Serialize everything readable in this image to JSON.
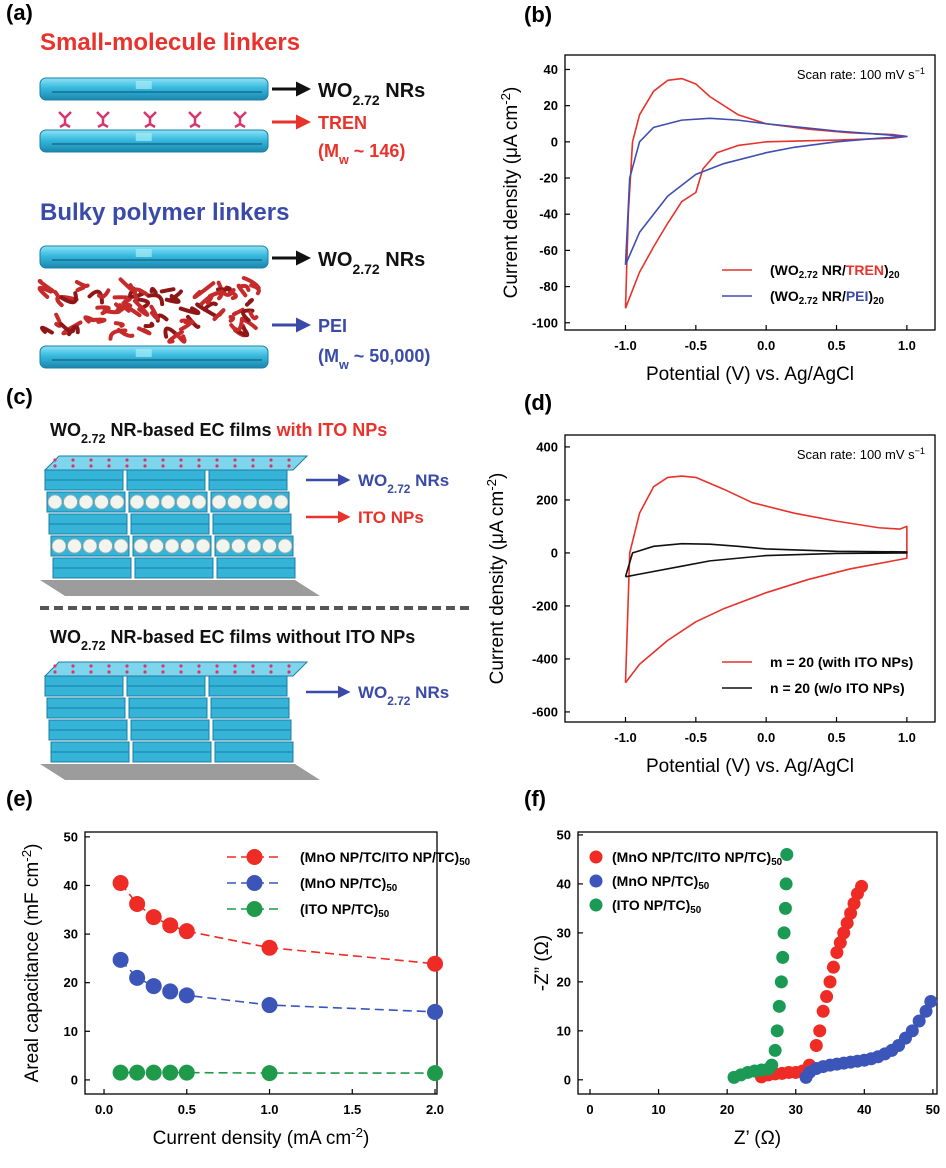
{
  "diagrams": [
    {
      "label": "(a)",
      "sections": [
        {
          "heading": "Small-molecule linkers",
          "callouts": [
            [
              "WO",
              {
                "text": "2.72",
                "style": "sub"
              },
              " NRs"
            ],
            "TREN",
            [
              "(M",
              {
                "text": "w",
                "style": "sub"
              },
              " ~ 146)"
            ]
          ]
        },
        {
          "heading": "Bulky polymer linkers",
          "callouts": [
            [
              "WO",
              {
                "text": "2.72",
                "style": "sub"
              },
              " NRs"
            ],
            "PEI",
            [
              "(M",
              {
                "text": "w",
                "style": "sub"
              },
              " ~ 50,000)"
            ]
          ]
        }
      ]
    },
    {
      "label": "(c)",
      "sections": [
        {
          "heading": [
            "WO",
            {
              "text": "2.72",
              "style": "sub"
            },
            " NR-based EC films ",
            {
              "text": "with ITO NPs",
              "color": "#e8322b"
            }
          ],
          "callouts": [
            [
              "WO",
              {
                "text": "2.72",
                "style": "sub"
              },
              " NRs"
            ],
            "ITO NPs"
          ]
        },
        {
          "heading": [
            "WO",
            {
              "text": "2.72",
              "style": "sub"
            },
            " NR-based EC films without ITO NPs"
          ],
          "callouts": [
            [
              "WO",
              {
                "text": "2.72",
                "style": "sub"
              },
              " NRs"
            ]
          ]
        }
      ]
    }
  ],
  "chart_data": [
    {
      "type": "line",
      "label": "(b)",
      "xlabel": "Potential (V) vs. Ag/AgCl",
      "ylabel": [
        "Current density (μA cm",
        {
          "text": "-2",
          "style": "sup"
        },
        ")"
      ],
      "annotation": [
        "Scan rate: 100 mV s",
        {
          "text": "−1",
          "style": "sup"
        }
      ],
      "xlim": [
        -1.43,
        1.2
      ],
      "ylim": [
        -104,
        48
      ],
      "xticks": [
        {
          "value": -1,
          "label": "-1.0"
        },
        {
          "value": -0.5,
          "label": "-0.5"
        },
        {
          "value": 0,
          "label": "0.0"
        },
        {
          "value": 0.5,
          "label": "0.5"
        },
        {
          "value": 1,
          "label": "1.0"
        }
      ],
      "yticks": [
        -100,
        -80,
        -60,
        -40,
        -20,
        0,
        20,
        40
      ],
      "legend": "lower right",
      "series": [
        {
          "name": [
            "(WO",
            {
              "text": "2.72",
              "style": "sub"
            },
            " NR/",
            {
              "text": "TREN",
              "color": "#e8322b"
            },
            ")",
            {
              "text": "20",
              "style": "sub"
            }
          ],
          "color": "#e8322b",
          "x": [
            -1,
            -0.98,
            -0.95,
            -0.9,
            -0.8,
            -0.7,
            -0.6,
            -0.5,
            -0.4,
            -0.2,
            0,
            0.3,
            0.6,
            0.9,
            1,
            0.9,
            0.5,
            0,
            -0.2,
            -0.35,
            -0.45,
            -0.5,
            -0.6,
            -0.7,
            -0.8,
            -0.9,
            -1
          ],
          "values": [
            -92,
            -40,
            0,
            15,
            28,
            34,
            35,
            32,
            25,
            15,
            10,
            7,
            5,
            4,
            3,
            2,
            1,
            0,
            -2,
            -6,
            -15,
            -28,
            -33,
            -45,
            -58,
            -72,
            -92
          ]
        },
        {
          "name": [
            "(WO",
            {
              "text": "2.72",
              "style": "sub"
            },
            " NR/",
            {
              "text": "PEI",
              "color": "#3a4aa8"
            },
            ")",
            {
              "text": "20",
              "style": "sub"
            }
          ],
          "color": "#3f4fb0",
          "x": [
            -1,
            -0.97,
            -0.9,
            -0.8,
            -0.6,
            -0.4,
            -0.2,
            0,
            0.5,
            1,
            0.8,
            0.5,
            0.2,
            0,
            -0.3,
            -0.5,
            -0.7,
            -0.9,
            -1
          ],
          "values": [
            -68,
            -20,
            0,
            8,
            12,
            13,
            12,
            10,
            6,
            3,
            2,
            0,
            -3,
            -6,
            -12,
            -18,
            -30,
            -50,
            -68
          ]
        }
      ]
    },
    {
      "type": "line",
      "label": "(d)",
      "xlabel": "Potential (V) vs. Ag/AgCl",
      "ylabel": [
        "Current density (μA cm",
        {
          "text": "-2",
          "style": "sup"
        },
        ")"
      ],
      "annotation": [
        "Scan rate: 100 mV s",
        {
          "text": "−1",
          "style": "sup"
        }
      ],
      "xlim": [
        -1.43,
        1.2
      ],
      "ylim": [
        -638,
        445
      ],
      "xticks": [
        {
          "value": -1,
          "label": "-1.0"
        },
        {
          "value": -0.5,
          "label": "-0.5"
        },
        {
          "value": 0,
          "label": "0.0"
        },
        {
          "value": 0.5,
          "label": "0.5"
        },
        {
          "value": 1,
          "label": "1.0"
        }
      ],
      "yticks": [
        -600,
        -400,
        -200,
        0,
        200,
        400
      ],
      "legend": "lower right",
      "series": [
        {
          "name": "m = 20 (with ITO NPs)",
          "color": "#e8322b",
          "x": [
            -1,
            -0.97,
            -0.9,
            -0.8,
            -0.7,
            -0.6,
            -0.5,
            -0.3,
            -0.1,
            0.2,
            0.5,
            0.8,
            0.95,
            1,
            1,
            0.9,
            0.6,
            0.3,
            0,
            -0.3,
            -0.5,
            -0.7,
            -0.9,
            -1
          ],
          "values": [
            -490,
            0,
            150,
            250,
            285,
            290,
            285,
            240,
            190,
            150,
            120,
            95,
            90,
            100,
            -20,
            -30,
            -60,
            -100,
            -150,
            -210,
            -260,
            -330,
            -420,
            -490
          ]
        },
        {
          "name": "n = 20  (w/o ITO NPs)",
          "color": "#111111",
          "x": [
            -1,
            -0.95,
            -0.8,
            -0.6,
            -0.4,
            -0.2,
            0,
            0.5,
            1,
            1,
            0.5,
            0,
            -0.4,
            -0.6,
            -0.9,
            -1
          ],
          "values": [
            -90,
            0,
            25,
            35,
            33,
            25,
            15,
            6,
            4,
            0,
            -2,
            -10,
            -30,
            -50,
            -80,
            -90
          ]
        }
      ]
    },
    {
      "type": "line",
      "label": "(e)",
      "markers": true,
      "linestyle": "dashed",
      "xlabel": [
        "Current density (mA cm",
        {
          "text": "-2",
          "style": "sup"
        },
        ")"
      ],
      "ylabel": [
        "Areal capacitance (mF cm",
        {
          "text": "-2",
          "style": "sup"
        },
        ")"
      ],
      "xlim": [
        -0.115,
        2.012
      ],
      "ylim": [
        -2.9,
        51
      ],
      "xticks": [
        {
          "value": 0,
          "label": "0.0"
        },
        {
          "value": 0.5,
          "label": "0.5"
        },
        {
          "value": 1,
          "label": "1.0"
        },
        {
          "value": 1.5,
          "label": "1.5"
        },
        {
          "value": 2,
          "label": "2.0"
        }
      ],
      "yticks": [
        0,
        10,
        20,
        30,
        40,
        50
      ],
      "legend": "upper right",
      "x": [
        0.1,
        0.2,
        0.3,
        0.4,
        0.5,
        1.0,
        2.0
      ],
      "series": [
        {
          "name": [
            "(MnO NP/TC/ITO NP/TC)",
            {
              "text": "50",
              "style": "sub"
            }
          ],
          "color": "#ee2b24",
          "values": [
            40.5,
            36.2,
            33.5,
            31.8,
            30.6,
            27.2,
            23.9
          ]
        },
        {
          "name": [
            "(MnO NP/TC)",
            {
              "text": "50",
              "style": "sub"
            }
          ],
          "color": "#3b55b8",
          "values": [
            24.7,
            21,
            19.3,
            18.2,
            17.4,
            15.4,
            14
          ]
        },
        {
          "name": [
            "(ITO NP/TC)",
            {
              "text": "50",
              "style": "sub"
            }
          ],
          "color": "#1f9a4b",
          "values": [
            1.5,
            1.5,
            1.5,
            1.5,
            1.5,
            1.4,
            1.4
          ]
        }
      ]
    },
    {
      "type": "scatter",
      "label": "(f)",
      "xlabel": "Z’ (Ω)",
      "ylabel": "-Z” (Ω)",
      "xlim": [
        -1.75,
        50.6
      ],
      "ylim": [
        -2.9,
        50.6
      ],
      "xticks": [
        0,
        10,
        20,
        30,
        40,
        50
      ],
      "yticks": [
        0,
        10,
        20,
        30,
        40,
        50
      ],
      "legend": "upper left",
      "series": [
        {
          "name": [
            "(MnO NP/TC/ITO NP/TC)",
            {
              "text": "50",
              "style": "sub"
            }
          ],
          "color": "#ee2b24",
          "x": [
            25,
            26,
            27,
            28,
            29,
            30,
            31,
            32,
            33,
            33.5,
            34,
            34.5,
            35,
            35.5,
            36,
            36.5,
            37,
            37.5,
            38,
            38.5,
            39,
            39.6
          ],
          "values": [
            0.6,
            1,
            1.2,
            1.3,
            1.5,
            1.5,
            1.8,
            3,
            7,
            10,
            14,
            17,
            20,
            23,
            26,
            28,
            30,
            32,
            34,
            36,
            38,
            39.5
          ]
        },
        {
          "name": [
            "(MnO NP/TC)",
            {
              "text": "50",
              "style": "sub"
            }
          ],
          "color": "#3b55b8",
          "x": [
            31.5,
            32,
            33,
            34,
            35,
            36,
            37,
            38,
            39,
            40,
            41,
            42,
            43,
            44,
            45,
            46,
            47,
            48,
            49,
            49.7
          ],
          "values": [
            0.5,
            1.5,
            2.3,
            2.7,
            3,
            3.2,
            3.4,
            3.6,
            3.8,
            4,
            4.3,
            4.7,
            5.3,
            6,
            7,
            8.5,
            10,
            12,
            14,
            16
          ]
        },
        {
          "name": [
            "(ITO NP/TC)",
            {
              "text": "50",
              "style": "sub"
            }
          ],
          "color": "#1a9a55",
          "x": [
            21,
            22,
            23,
            24,
            25,
            26,
            26.5,
            27,
            27.3,
            27.6,
            27.9,
            28.1,
            28.3,
            28.5,
            28.6,
            28.7
          ],
          "values": [
            0.5,
            1,
            1.5,
            1.8,
            2,
            2.2,
            3,
            6,
            10,
            15,
            20,
            25,
            30,
            35,
            40,
            46
          ]
        }
      ]
    }
  ]
}
